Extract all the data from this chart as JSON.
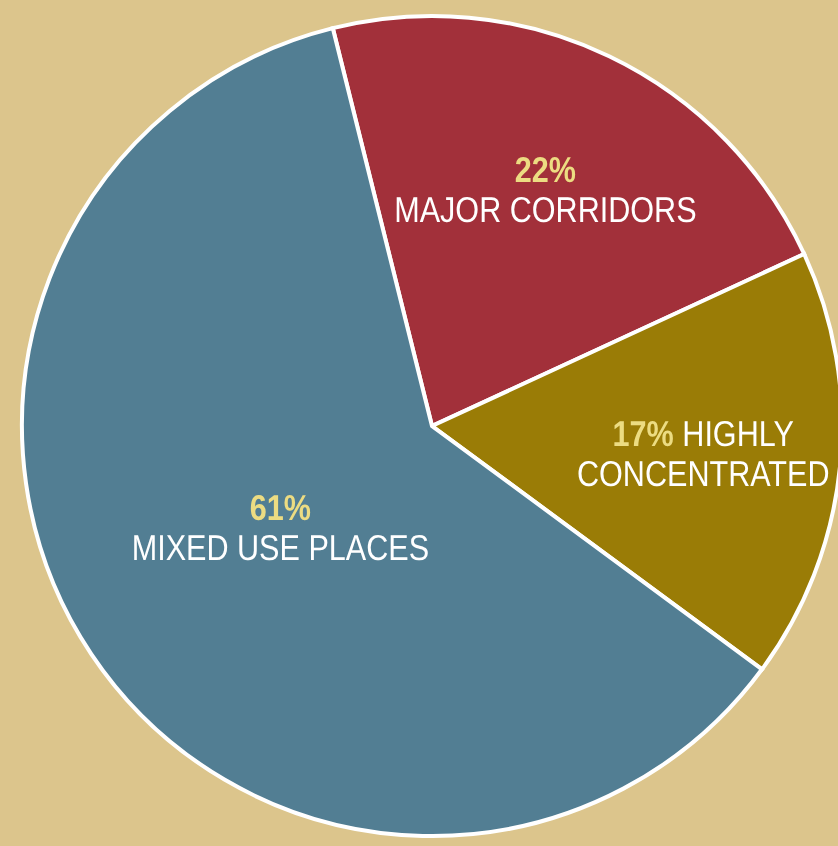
{
  "chart_data": {
    "type": "pie",
    "categories": [
      "MAJOR CORRIDORS",
      "HIGHLY CONCENTRATED",
      "MIXED USE PLACES"
    ],
    "values": [
      22,
      17,
      61
    ],
    "value_labels": [
      "22%",
      "17%",
      "61%"
    ],
    "colors": [
      "#a2303a",
      "#9a7c06",
      "#527e93"
    ]
  }
}
